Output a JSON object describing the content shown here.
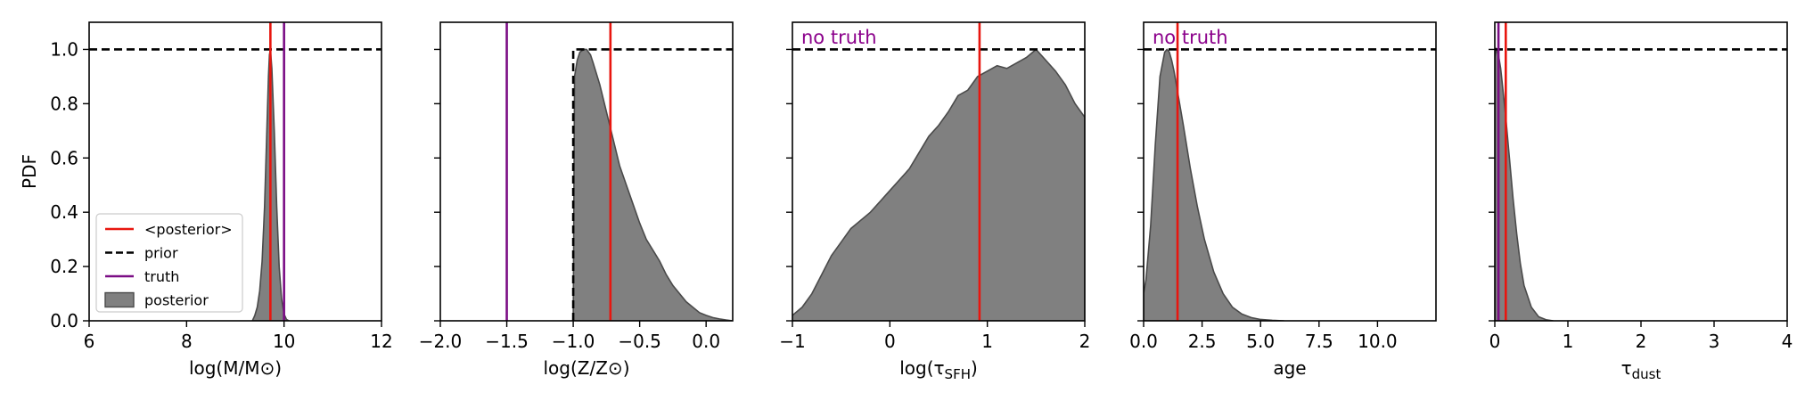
{
  "colors": {
    "posterior_mean": "#e8160f",
    "prior": "#000000",
    "truth": "#7b0d85",
    "posterior_fill": "#808080",
    "posterior_edge": "#4a4a4a",
    "note": "#8b008b"
  },
  "legend": {
    "entries": [
      {
        "label": "<posterior>",
        "kind": "line",
        "color_key": "posterior_mean"
      },
      {
        "label": "prior",
        "kind": "dash",
        "color_key": "prior"
      },
      {
        "label": "truth",
        "kind": "line",
        "color_key": "truth"
      },
      {
        "label": "posterior",
        "kind": "patch",
        "color_key": "posterior_fill"
      }
    ],
    "placement": "lower-left of first panel"
  },
  "chart_data": [
    {
      "type": "area",
      "xlabel": "log(M/M⊙)",
      "ylabel": "PDF",
      "xlim": [
        6,
        12
      ],
      "ylim": [
        0,
        1.1
      ],
      "xticks": [
        "6",
        "8",
        "10",
        "12"
      ],
      "yticks": [
        "0.0",
        "0.2",
        "0.4",
        "0.6",
        "0.8",
        "1.0"
      ],
      "prior": {
        "type": "flat",
        "x_start": 6,
        "value": 1.0
      },
      "posterior_mean": 9.72,
      "truth": 10.0,
      "note": "",
      "posterior_pdf": {
        "x": [
          9.35,
          9.4,
          9.45,
          9.5,
          9.55,
          9.6,
          9.65,
          9.68,
          9.7,
          9.72,
          9.75,
          9.8,
          9.85,
          9.9,
          9.95,
          10.0,
          10.05,
          10.1
        ],
        "y": [
          0.0,
          0.02,
          0.05,
          0.11,
          0.22,
          0.42,
          0.72,
          0.9,
          0.98,
          1.0,
          0.93,
          0.7,
          0.42,
          0.2,
          0.08,
          0.025,
          0.005,
          0.0
        ]
      }
    },
    {
      "type": "area",
      "xlabel": "log(Z/Z⊙)",
      "ylabel": "",
      "xlim": [
        -2.0,
        0.2
      ],
      "ylim": [
        0,
        1.1
      ],
      "xticks": [
        "−2.0",
        "−1.5",
        "−1.0",
        "−0.5",
        "0.0"
      ],
      "yticks": [],
      "prior": {
        "type": "flat",
        "x_start": -1.0,
        "value": 1.0
      },
      "posterior_mean": -0.72,
      "truth": -1.5,
      "note": "",
      "posterior_pdf": {
        "x": [
          -1.0,
          -0.99,
          -0.97,
          -0.95,
          -0.92,
          -0.9,
          -0.87,
          -0.85,
          -0.8,
          -0.75,
          -0.7,
          -0.65,
          -0.6,
          -0.55,
          -0.5,
          -0.45,
          -0.4,
          -0.35,
          -0.3,
          -0.25,
          -0.2,
          -0.15,
          -0.1,
          -0.05,
          0.0,
          0.05,
          0.1,
          0.15,
          0.2
        ],
        "y": [
          0.0,
          0.9,
          0.96,
          0.99,
          1.0,
          1.0,
          0.98,
          0.95,
          0.87,
          0.77,
          0.67,
          0.57,
          0.5,
          0.43,
          0.36,
          0.3,
          0.26,
          0.22,
          0.17,
          0.13,
          0.1,
          0.07,
          0.05,
          0.03,
          0.02,
          0.012,
          0.007,
          0.003,
          0.0
        ]
      }
    },
    {
      "type": "area",
      "xlabel": "log(τSFH)",
      "ylabel": "",
      "xlim": [
        -1,
        2
      ],
      "ylim": [
        0,
        1.1
      ],
      "xticks": [
        "−1",
        "0",
        "1",
        "2"
      ],
      "yticks": [],
      "prior": {
        "type": "flat",
        "x_start": -1,
        "value": 1.0
      },
      "posterior_mean": 0.92,
      "truth": null,
      "note": "no truth",
      "posterior_pdf": {
        "x": [
          -1.0,
          -0.9,
          -0.8,
          -0.7,
          -0.6,
          -0.5,
          -0.4,
          -0.3,
          -0.2,
          -0.1,
          0.0,
          0.1,
          0.2,
          0.3,
          0.4,
          0.5,
          0.6,
          0.7,
          0.8,
          0.9,
          1.0,
          1.1,
          1.2,
          1.3,
          1.4,
          1.5,
          1.6,
          1.7,
          1.8,
          1.9,
          2.0
        ],
        "y": [
          0.02,
          0.05,
          0.1,
          0.17,
          0.24,
          0.29,
          0.34,
          0.37,
          0.4,
          0.44,
          0.48,
          0.52,
          0.56,
          0.62,
          0.68,
          0.72,
          0.77,
          0.83,
          0.85,
          0.9,
          0.92,
          0.94,
          0.93,
          0.95,
          0.97,
          1.0,
          0.96,
          0.92,
          0.87,
          0.8,
          0.75
        ]
      }
    },
    {
      "type": "area",
      "xlabel": "age",
      "ylabel": "",
      "xlim": [
        0,
        12.5
      ],
      "ylim": [
        0,
        1.1
      ],
      "xticks": [
        "0.0",
        "2.5",
        "5.0",
        "7.5",
        "10.0"
      ],
      "yticks": [],
      "prior": {
        "type": "flat",
        "x_start": 0,
        "value": 1.0
      },
      "posterior_mean": 1.45,
      "truth": null,
      "note": "no truth",
      "posterior_pdf": {
        "x": [
          0.0,
          0.1,
          0.3,
          0.5,
          0.7,
          0.9,
          1.0,
          1.1,
          1.2,
          1.3,
          1.5,
          1.7,
          2.0,
          2.3,
          2.6,
          3.0,
          3.4,
          3.8,
          4.2,
          4.6,
          5.0,
          5.5,
          6.0
        ],
        "y": [
          0.1,
          0.15,
          0.35,
          0.65,
          0.9,
          0.99,
          1.0,
          0.99,
          0.96,
          0.92,
          0.82,
          0.72,
          0.56,
          0.42,
          0.3,
          0.18,
          0.1,
          0.05,
          0.025,
          0.012,
          0.005,
          0.002,
          0.0
        ]
      }
    },
    {
      "type": "area",
      "xlabel": "τdust",
      "ylabel": "",
      "xlim": [
        0,
        4
      ],
      "ylim": [
        0,
        1.1
      ],
      "xticks": [
        "0",
        "1",
        "2",
        "3",
        "4"
      ],
      "yticks": [],
      "prior": {
        "type": "flat",
        "x_start": 0,
        "value": 1.0
      },
      "posterior_mean": 0.15,
      "truth": 0.05,
      "note": "",
      "posterior_pdf": {
        "x": [
          0.0,
          0.02,
          0.05,
          0.08,
          0.1,
          0.15,
          0.2,
          0.25,
          0.3,
          0.35,
          0.4,
          0.5,
          0.6,
          0.7,
          0.8
        ],
        "y": [
          0.97,
          1.0,
          0.98,
          0.93,
          0.88,
          0.75,
          0.6,
          0.45,
          0.32,
          0.21,
          0.13,
          0.05,
          0.015,
          0.004,
          0.0
        ]
      }
    }
  ]
}
